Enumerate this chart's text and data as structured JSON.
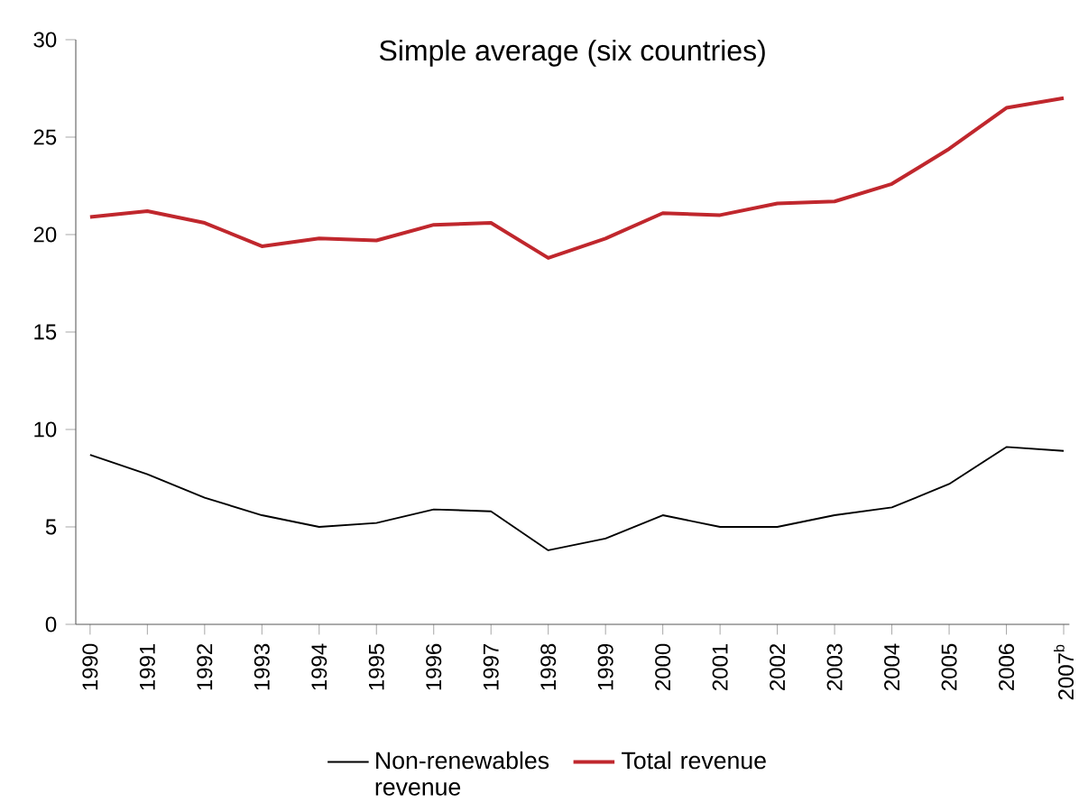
{
  "chart_data": {
    "type": "line",
    "title": "Simple average (six countries)",
    "categories": [
      "1990",
      "1991",
      "1992",
      "1993",
      "1994",
      "1995",
      "1996",
      "1997",
      "1998",
      "1999",
      "2000",
      "2001",
      "2002",
      "2003",
      "2004",
      "2005",
      "2006",
      "2007$^{b}$"
    ],
    "series": [
      {
        "name": "Non-renewables revenue",
        "color": "#000000",
        "values": [
          8.7,
          7.7,
          6.5,
          5.6,
          5.0,
          5.2,
          5.9,
          5.8,
          3.8,
          4.4,
          5.6,
          5.0,
          5.0,
          5.6,
          6.0,
          7.2,
          9.1,
          8.9
        ]
      },
      {
        "name": "Total revenue",
        "color": "#c0272d",
        "values": [
          20.9,
          21.2,
          20.6,
          19.4,
          19.8,
          19.7,
          20.5,
          20.6,
          18.8,
          19.8,
          21.1,
          21.0,
          21.6,
          21.7,
          22.6,
          24.4,
          26.5,
          27.0
        ]
      }
    ],
    "ylim": [
      0,
      30
    ],
    "yticks": [
      0,
      5,
      10,
      15,
      20,
      25,
      30
    ],
    "grid": false,
    "legend": "bottom",
    "marker": "none",
    "line_style": "solid"
  }
}
